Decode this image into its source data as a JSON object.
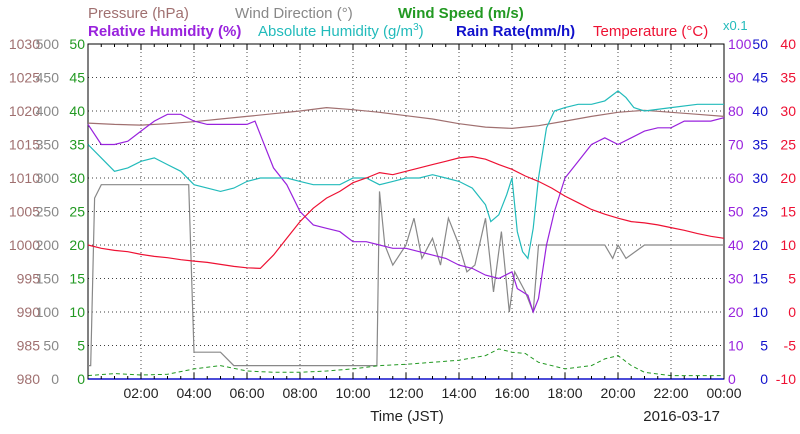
{
  "chart_data": {
    "type": "line",
    "date_label": "2016-03-17",
    "xlabel": "Time (JST)",
    "x_range_hours": [
      0,
      24
    ],
    "x_ticks": [
      "02:00",
      "04:00",
      "06:00",
      "08:00",
      "10:00",
      "12:00",
      "14:00",
      "16:00",
      "18:00",
      "20:00",
      "22:00",
      "00:00"
    ],
    "titles": {
      "pressure": "Pressure (hPa)",
      "wind_direction": "Wind Direction (°)",
      "wind_speed": "Wind Speed (m/s)",
      "relative_humidity": "Relative Humidity (%)",
      "absolute_humidity_prefix": "Absolute Humidity (g/m",
      "absolute_humidity_sup": "3",
      "absolute_humidity_suffix": ")",
      "rain_rate": "Rain Rate(mm/h)",
      "temperature_prefix": "Temperature (",
      "temperature_unit": "°C",
      "temperature_suffix": ")",
      "scale_note": "x0.1"
    },
    "axes": {
      "pressure": {
        "min": 980,
        "max": 1030,
        "ticks": [
          "1030",
          "1025",
          "1020",
          "1015",
          "1010",
          "1005",
          "1000",
          "995",
          "990",
          "985",
          "980"
        ]
      },
      "wind_direction": {
        "min": 0,
        "max": 500,
        "ticks": [
          "500",
          "450",
          "400",
          "350",
          "300",
          "250",
          "200",
          "150",
          "100",
          "50",
          "0"
        ]
      },
      "wind_speed": {
        "min": 0,
        "max": 50,
        "ticks": [
          "50",
          "45",
          "40",
          "35",
          "30",
          "25",
          "20",
          "15",
          "10",
          "5",
          "0"
        ]
      },
      "humidity": {
        "min": 0,
        "max": 100,
        "ticks": [
          "100",
          "90",
          "80",
          "70",
          "60",
          "50",
          "40",
          "30",
          "20",
          "10",
          "0"
        ]
      },
      "rain_rate": {
        "min": 0,
        "max": 50,
        "ticks": [
          "50",
          "45",
          "40",
          "35",
          "30",
          "25",
          "20",
          "15",
          "10",
          "5",
          "0"
        ]
      },
      "temperature": {
        "min": -10,
        "max": 40,
        "ticks": [
          "40",
          "35",
          "30",
          "25",
          "20",
          "15",
          "10",
          "5",
          "0",
          "-5",
          "-10"
        ]
      }
    },
    "colors": {
      "pressure": "#a07070",
      "wind_direction": "#888888",
      "wind_speed": "#229922",
      "relative_humidity": "#9922dd",
      "absolute_humidity": "#22bbbb",
      "rain_rate": "#1111cc",
      "temperature": "#ee1133"
    },
    "series": [
      {
        "name": "Pressure (hPa)",
        "key": "pressure",
        "axis": "pressure",
        "x": [
          0,
          1,
          2,
          3,
          4,
          5,
          6,
          7,
          8,
          9,
          10,
          11,
          12,
          13,
          14,
          15,
          16,
          17,
          18,
          19,
          20,
          21,
          22,
          23,
          24
        ],
        "y": [
          1018.2,
          1018.0,
          1017.9,
          1018.1,
          1018.4,
          1018.8,
          1019.2,
          1019.6,
          1020.0,
          1020.5,
          1020.2,
          1019.8,
          1019.3,
          1018.8,
          1018.1,
          1017.6,
          1017.4,
          1017.8,
          1018.5,
          1019.2,
          1019.8,
          1020.1,
          1019.8,
          1019.5,
          1019.2
        ]
      },
      {
        "name": "Wind Direction (°)",
        "key": "wind_direction",
        "axis": "wind_direction",
        "x": [
          0,
          0.1,
          0.25,
          0.5,
          1,
          2,
          3,
          3.5,
          3.8,
          4,
          4.5,
          5,
          5.5,
          6,
          7,
          8,
          9,
          10,
          10.5,
          10.9,
          11,
          11.2,
          11.5,
          12,
          12.3,
          12.6,
          13,
          13.3,
          13.6,
          14,
          14.3,
          14.6,
          15,
          15.3,
          15.6,
          15.9,
          16.1,
          16.5,
          16.8,
          17,
          18,
          19,
          19.5,
          19.8,
          20,
          20.3,
          21,
          22,
          23,
          24
        ],
        "y": [
          20,
          20,
          270,
          290,
          290,
          290,
          290,
          290,
          290,
          40,
          40,
          40,
          20,
          20,
          20,
          20,
          20,
          20,
          20,
          20,
          280,
          200,
          170,
          200,
          240,
          180,
          210,
          170,
          240,
          200,
          160,
          170,
          240,
          130,
          220,
          100,
          160,
          130,
          100,
          200,
          200,
          200,
          200,
          180,
          200,
          180,
          200,
          200,
          200,
          200
        ]
      },
      {
        "name": "Wind Speed (m/s)",
        "key": "wind_speed",
        "axis": "wind_speed",
        "x": [
          0,
          1,
          2,
          3,
          4,
          5,
          6,
          7,
          8,
          9,
          10,
          11,
          12,
          13,
          14,
          15,
          15.5,
          16,
          16.5,
          17,
          18,
          19,
          19.5,
          20,
          20.5,
          21,
          22,
          23,
          24
        ],
        "y": [
          0.5,
          0.8,
          0.6,
          0.7,
          1.5,
          2.0,
          1.2,
          1.0,
          1.0,
          1.2,
          1.5,
          2.0,
          2.2,
          2.5,
          2.8,
          3.5,
          4.5,
          4.0,
          3.8,
          2.5,
          1.5,
          2.0,
          3.0,
          3.5,
          2.0,
          1.0,
          0.5,
          0.5,
          0.5
        ]
      },
      {
        "name": "Relative Humidity (%)",
        "key": "relative_humidity",
        "axis": "humidity",
        "x": [
          0,
          0.5,
          1,
          1.5,
          2,
          2.5,
          3,
          3.5,
          4,
          4.5,
          5,
          5.5,
          6,
          6.3,
          6.6,
          7,
          7.5,
          8,
          8.5,
          9,
          9.5,
          10,
          10.5,
          11,
          11.5,
          12,
          12.5,
          13,
          13.5,
          14,
          14.5,
          15,
          15.5,
          16,
          16.2,
          16.4,
          16.6,
          16.8,
          17,
          17.3,
          17.6,
          18,
          18.5,
          19,
          19.5,
          20,
          20.5,
          21,
          21.5,
          22,
          22.5,
          23,
          23.5,
          24
        ],
        "y": [
          76,
          70,
          70,
          71,
          74,
          77,
          79,
          79,
          77,
          76,
          76,
          76,
          76,
          77,
          71,
          63,
          58,
          50,
          46,
          45,
          44,
          41,
          41,
          40,
          39,
          39,
          38,
          37,
          36,
          34,
          33,
          31,
          30,
          32,
          27,
          26,
          25,
          20,
          24,
          40,
          50,
          60,
          65,
          70,
          72,
          70,
          72,
          74,
          75,
          75,
          77,
          77,
          77,
          78
        ]
      },
      {
        "name": "Absolute Humidity (g/m3)",
        "key": "absolute_humidity",
        "axis": "humidity",
        "x": [
          0,
          0.5,
          1,
          1.5,
          2,
          2.5,
          3,
          3.5,
          4,
          4.5,
          5,
          5.5,
          6,
          6.5,
          7,
          7.5,
          8,
          8.5,
          9,
          9.5,
          10,
          10.5,
          11,
          11.5,
          12,
          12.5,
          13,
          13.5,
          14,
          14.5,
          15,
          15.2,
          15.5,
          15.8,
          16,
          16.2,
          16.4,
          16.6,
          16.8,
          17,
          17.3,
          17.6,
          18,
          18.5,
          19,
          19.5,
          20,
          20.3,
          20.6,
          21,
          22,
          23,
          24
        ],
        "y": [
          70,
          66,
          62,
          63,
          65,
          66,
          64,
          62,
          58,
          57,
          56,
          57,
          59,
          60,
          60,
          60,
          59,
          58,
          58,
          58,
          60,
          60,
          58,
          59,
          60,
          60,
          61,
          60,
          59,
          57,
          52,
          47,
          49,
          55,
          60,
          44,
          38,
          36,
          45,
          60,
          75,
          80,
          81,
          82,
          82,
          83,
          86,
          84,
          81,
          80,
          81,
          82,
          82
        ]
      },
      {
        "name": "Rain Rate(mm/h)",
        "key": "rain_rate",
        "axis": "rain_rate",
        "x": [
          0,
          24
        ],
        "y": [
          0,
          0
        ]
      },
      {
        "name": "Temperature (°C)",
        "key": "temperature",
        "axis": "temperature",
        "x": [
          0,
          0.5,
          1,
          1.5,
          2,
          2.5,
          3,
          3.5,
          4,
          4.5,
          5,
          5.5,
          6,
          6.5,
          7,
          7.5,
          8,
          8.5,
          9,
          9.5,
          10,
          10.5,
          11,
          11.5,
          12,
          12.5,
          13,
          13.5,
          14,
          14.5,
          15,
          15.5,
          16,
          16.5,
          17,
          17.5,
          18,
          18.5,
          19,
          19.5,
          20,
          20.5,
          21,
          21.5,
          22,
          22.5,
          23,
          23.5,
          24
        ],
        "y": [
          10.0,
          9.5,
          9.2,
          9.0,
          8.6,
          8.3,
          8.1,
          7.8,
          7.6,
          7.4,
          7.1,
          6.8,
          6.6,
          6.5,
          8.5,
          11,
          13.5,
          15.5,
          17,
          18,
          19.3,
          20,
          20.8,
          20.5,
          21,
          21.5,
          22,
          22.5,
          23,
          23.2,
          22.8,
          22,
          21.3,
          20.3,
          19.5,
          18.5,
          17.3,
          16.3,
          15.3,
          14.6,
          14,
          13.5,
          13.3,
          13.0,
          12.6,
          12.2,
          11.7,
          11.3,
          11.0
        ]
      }
    ]
  }
}
